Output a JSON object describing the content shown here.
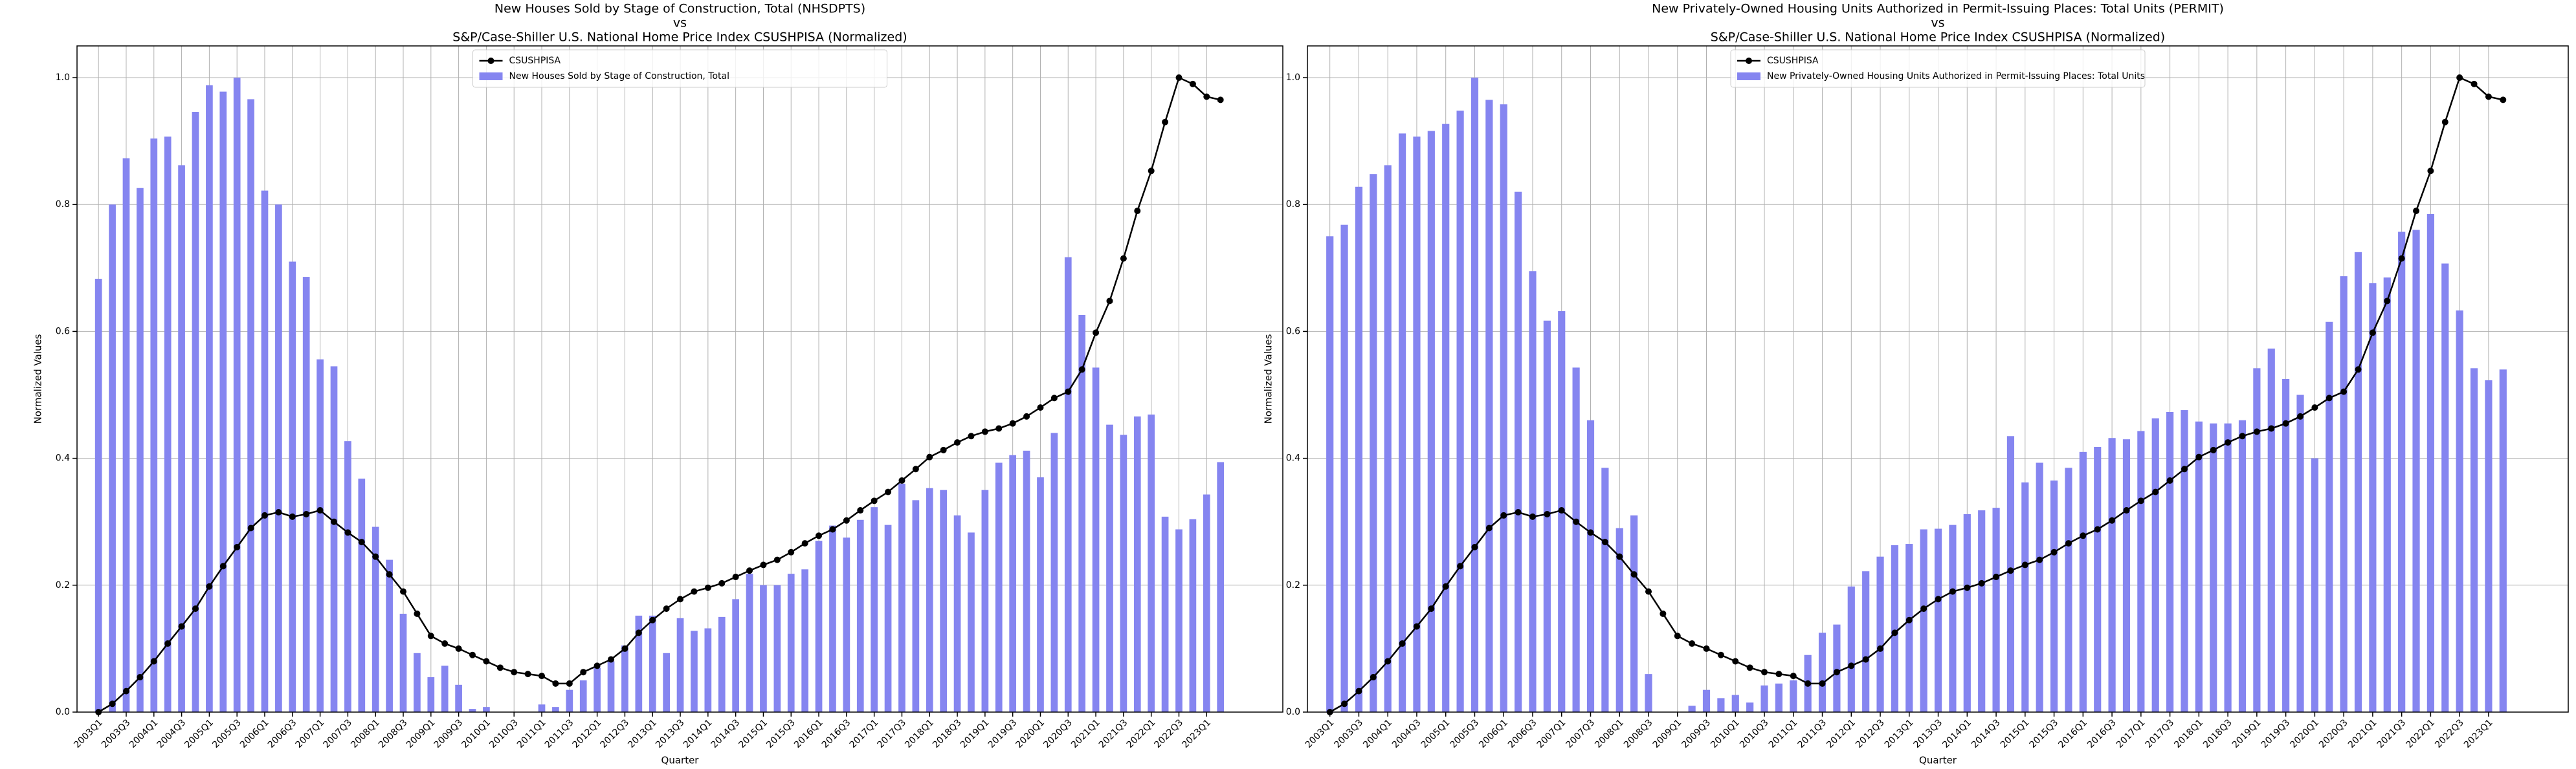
{
  "chart_data": [
    {
      "type": "combo",
      "title": [
        "New Houses Sold by Stage of Construction, Total (NHSDPTS)",
        "vs",
        "S&P/Case-Shiller U.S. National Home Price Index CSUSHPISA (Normalized)"
      ],
      "x_label": "Quarter",
      "y_label": "Normalized Values",
      "categories": [
        "2003Q1",
        null,
        "2003Q3",
        null,
        "2004Q1",
        null,
        "2004Q3",
        null,
        "2005Q1",
        null,
        "2005Q3",
        null,
        "2006Q1",
        null,
        "2006Q3",
        null,
        "2007Q1",
        null,
        "2007Q3",
        null,
        "2008Q1",
        null,
        "2008Q3",
        null,
        "2009Q1",
        null,
        "2009Q3",
        null,
        "2010Q1",
        null,
        "2010Q3",
        null,
        "2011Q1",
        null,
        "2011Q3",
        null,
        "2012Q1",
        null,
        "2012Q3",
        null,
        "2013Q1",
        null,
        "2013Q3",
        null,
        "2014Q1",
        null,
        "2014Q3",
        null,
        "2015Q1",
        null,
        "2015Q3",
        null,
        "2016Q1",
        null,
        "2016Q3",
        null,
        "2017Q1",
        null,
        "2017Q3",
        null,
        "2018Q1",
        null,
        "2018Q3",
        null,
        "2019Q1",
        null,
        "2019Q3",
        null,
        "2020Q1",
        null,
        "2020Q3",
        null,
        "2021Q1",
        null,
        "2021Q3",
        null,
        "2022Q1",
        null,
        "2022Q3",
        null,
        "2023Q1",
        null
      ],
      "series": [
        {
          "name": "CSUSHPISA",
          "type": "line",
          "color": "#000000",
          "values": [
            0,
            0.013,
            0.033,
            0.055,
            0.08,
            0.108,
            0.135,
            0.163,
            0.198,
            0.23,
            0.26,
            0.29,
            0.31,
            0.315,
            0.308,
            0.312,
            0.318,
            0.3,
            0.283,
            0.268,
            0.245,
            0.217,
            0.19,
            0.155,
            0.12,
            0.108,
            0.1,
            0.09,
            0.08,
            0.07,
            0.063,
            0.06,
            0.057,
            0.045,
            0.045,
            0.063,
            0.073,
            0.083,
            0.1,
            0.125,
            0.145,
            0.163,
            0.178,
            0.19,
            0.196,
            0.203,
            0.213,
            0.223,
            0.232,
            0.24,
            0.252,
            0.266,
            0.278,
            0.288,
            0.302,
            0.318,
            0.333,
            0.347,
            0.365,
            0.383,
            0.402,
            0.413,
            0.425,
            0.435,
            0.442,
            0.447,
            0.455,
            0.466,
            0.48,
            0.495,
            0.505,
            0.54,
            0.598,
            0.648,
            0.715,
            0.79,
            0.853,
            0.93,
            1.0,
            0.99,
            0.97,
            0.965
          ]
        },
        {
          "name": "New Houses Sold by Stage of Construction, Total",
          "type": "bar",
          "color": "#8585f0",
          "values": [
            0.683,
            0.8,
            0.873,
            0.826,
            0.904,
            0.907,
            0.862,
            0.946,
            0.988,
            0.978,
            1.0,
            0.966,
            0.822,
            0.8,
            0.71,
            0.686,
            0.556,
            0.545,
            0.427,
            0.368,
            0.292,
            0.24,
            0.155,
            0.093,
            0.055,
            0.073,
            0.043,
            0.005,
            0.008,
            0.0,
            0.0,
            0.0,
            0.012,
            0.008,
            0.035,
            0.05,
            0.07,
            0.08,
            0.105,
            0.152,
            0.152,
            0.093,
            0.148,
            0.128,
            0.132,
            0.15,
            0.178,
            0.218,
            0.2,
            0.2,
            0.218,
            0.225,
            0.27,
            0.294,
            0.275,
            0.303,
            0.323,
            0.295,
            0.36,
            0.334,
            0.353,
            0.35,
            0.31,
            0.283,
            0.35,
            0.393,
            0.405,
            0.412,
            0.37,
            0.44,
            0.717,
            0.626,
            0.543,
            0.453,
            0.437,
            0.466,
            0.469,
            0.308,
            0.288,
            0.304,
            0.343,
            0.394
          ]
        }
      ],
      "ylim": [
        0,
        1.05
      ],
      "yticks": [
        {
          "value": 0,
          "label": "0.0"
        },
        0.2,
        0.4,
        0.6,
        0.8,
        {
          "value": 1,
          "label": "1.0"
        }
      ],
      "grid": true,
      "legend": "upper center"
    },
    {
      "type": "combo",
      "title": [
        "New Privately-Owned Housing Units Authorized in Permit-Issuing Places: Total Units (PERMIT)",
        "vs",
        "S&P/Case-Shiller U.S. National Home Price Index CSUSHPISA (Normalized)"
      ],
      "x_label": "Quarter",
      "y_label": "Normalized Values",
      "categories": [
        "2003Q1",
        null,
        "2003Q3",
        null,
        "2004Q1",
        null,
        "2004Q3",
        null,
        "2005Q1",
        null,
        "2005Q3",
        null,
        "2006Q1",
        null,
        "2006Q3",
        null,
        "2007Q1",
        null,
        "2007Q3",
        null,
        "2008Q1",
        null,
        "2008Q3",
        null,
        "2009Q1",
        null,
        "2009Q3",
        null,
        "2010Q1",
        null,
        "2010Q3",
        null,
        "2011Q1",
        null,
        "2011Q3",
        null,
        "2012Q1",
        null,
        "2012Q3",
        null,
        "2013Q1",
        null,
        "2013Q3",
        null,
        "2014Q1",
        null,
        "2014Q3",
        null,
        "2015Q1",
        null,
        "2015Q3",
        null,
        "2016Q1",
        null,
        "2016Q3",
        null,
        "2017Q1",
        null,
        "2017Q3",
        null,
        "2018Q1",
        null,
        "2018Q3",
        null,
        "2019Q1",
        null,
        "2019Q3",
        null,
        "2020Q1",
        null,
        "2020Q3",
        null,
        "2021Q1",
        null,
        "2021Q3",
        null,
        "2022Q1",
        null,
        "2022Q3",
        null,
        "2023Q1",
        null
      ],
      "series": [
        {
          "name": "CSUSHPISA",
          "type": "line",
          "color": "#000000",
          "values": [
            0,
            0.013,
            0.033,
            0.055,
            0.08,
            0.108,
            0.135,
            0.163,
            0.198,
            0.23,
            0.26,
            0.29,
            0.31,
            0.315,
            0.308,
            0.312,
            0.318,
            0.3,
            0.283,
            0.268,
            0.245,
            0.217,
            0.19,
            0.155,
            0.12,
            0.108,
            0.1,
            0.09,
            0.08,
            0.07,
            0.063,
            0.06,
            0.057,
            0.045,
            0.045,
            0.063,
            0.073,
            0.083,
            0.1,
            0.125,
            0.145,
            0.163,
            0.178,
            0.19,
            0.196,
            0.203,
            0.213,
            0.223,
            0.232,
            0.24,
            0.252,
            0.266,
            0.278,
            0.288,
            0.302,
            0.318,
            0.333,
            0.347,
            0.365,
            0.383,
            0.402,
            0.413,
            0.425,
            0.435,
            0.442,
            0.447,
            0.455,
            0.466,
            0.48,
            0.495,
            0.505,
            0.54,
            0.598,
            0.648,
            0.715,
            0.79,
            0.853,
            0.93,
            1.0,
            0.99,
            0.97,
            0.965
          ]
        },
        {
          "name": "New Privately-Owned Housing Units Authorized in Permit-Issuing Places: Total Units",
          "type": "bar",
          "color": "#8585f0",
          "values": [
            0.75,
            0.768,
            0.828,
            0.848,
            0.862,
            0.912,
            0.907,
            0.916,
            0.927,
            0.948,
            1.0,
            0.965,
            0.958,
            0.82,
            0.695,
            0.617,
            0.632,
            0.543,
            0.46,
            0.385,
            0.29,
            0.31,
            0.06,
            0.0,
            0.0,
            0.01,
            0.035,
            0.022,
            0.027,
            0.015,
            0.042,
            0.045,
            0.05,
            0.09,
            0.125,
            0.138,
            0.198,
            0.222,
            0.245,
            0.263,
            0.265,
            0.288,
            0.289,
            0.295,
            0.312,
            0.318,
            0.322,
            0.435,
            0.362,
            0.393,
            0.365,
            0.385,
            0.41,
            0.418,
            0.432,
            0.43,
            0.443,
            0.463,
            0.473,
            0.476,
            0.458,
            0.455,
            0.455,
            0.46,
            0.542,
            0.573,
            0.525,
            0.5,
            0.4,
            0.615,
            0.687,
            0.725,
            0.676,
            0.685,
            0.757,
            0.76,
            0.785,
            0.707,
            0.633,
            0.542,
            0.523,
            0.54
          ]
        }
      ],
      "ylim": [
        0,
        1.05
      ],
      "yticks": [
        {
          "value": 0,
          "label": "0.0"
        },
        0.2,
        0.4,
        0.6,
        0.8,
        {
          "value": 1,
          "label": "1.0"
        }
      ],
      "grid": true,
      "legend": "upper center"
    }
  ]
}
